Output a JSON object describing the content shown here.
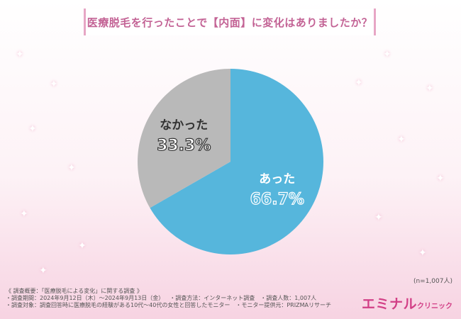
{
  "title": "医療脱毛を行ったことで【内面】に変化はありましたか？",
  "chart_data": {
    "type": "pie",
    "title": "医療脱毛を行ったことで【内面】に変化はありましたか？",
    "slices": [
      {
        "label": "あった",
        "value": 66.7,
        "value_label": "66.7%",
        "color": "#56b6dc"
      },
      {
        "label": "なかった",
        "value": 33.3,
        "value_label": "33.3%",
        "color": "#b9b9b9"
      }
    ],
    "start": "12 o'clock",
    "direction": "clockwise",
    "legend": "none"
  },
  "sample_note": "(n=1,007人)",
  "footer": {
    "survey_summary": "《 調査概要：「医療脱毛による変化」に関する調査 》",
    "period": "・調査期間：2024年9月12日（木）～2024年9月13日（金）",
    "method": "・調査方法：インターネット調査",
    "count": "・調査人数：1,007人",
    "target": "・調査対象：調査回答時に医療脱毛の経験がある10代～40代の女性と回答したモニター",
    "provider": "・モニター提供元：PRIZMAリサーチ"
  },
  "logo": {
    "main": "エミナル",
    "sub": "クリニック"
  }
}
